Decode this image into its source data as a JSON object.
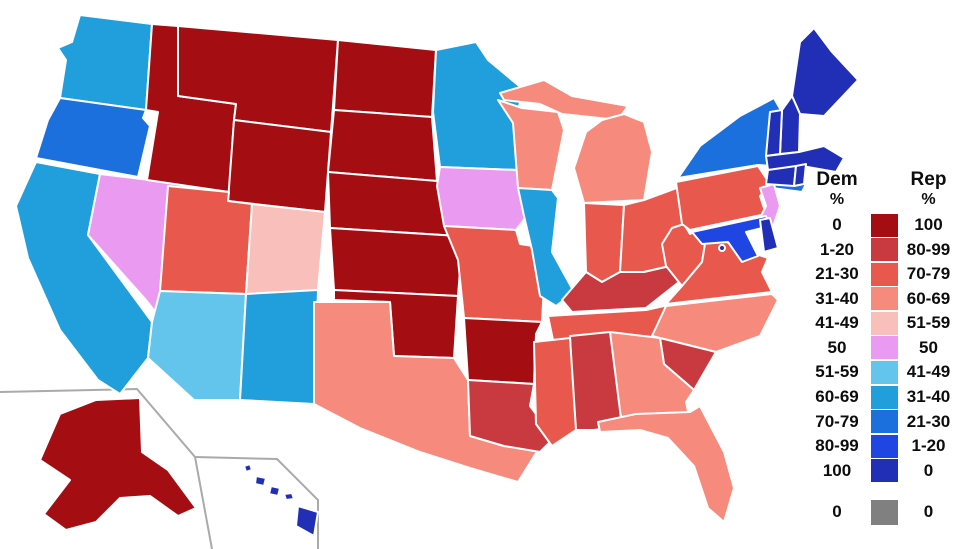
{
  "canvas": {
    "background": "#ffffff",
    "state_border_color": "#ffffff",
    "inset_border_color": "#aaaaaa"
  },
  "legend": {
    "dem_header": {
      "title": "Dem",
      "unit": "%"
    },
    "rep_header": {
      "title": "Rep",
      "unit": "%"
    },
    "rows": [
      {
        "dem": "0",
        "rep": "100",
        "color": "#a40d12"
      },
      {
        "dem": "1-20",
        "rep": "80-99",
        "color": "#c93a40"
      },
      {
        "dem": "21-30",
        "rep": "70-79",
        "color": "#e8584c"
      },
      {
        "dem": "31-40",
        "rep": "60-69",
        "color": "#f58a7d"
      },
      {
        "dem": "41-49",
        "rep": "51-59",
        "color": "#f9bfba"
      },
      {
        "dem": "50",
        "rep": "50",
        "color": "#eb9af1"
      },
      {
        "dem": "51-59",
        "rep": "41-49",
        "color": "#64c5ec"
      },
      {
        "dem": "60-69",
        "rep": "31-40",
        "color": "#219fdc"
      },
      {
        "dem": "70-79",
        "rep": "21-30",
        "color": "#1c70de"
      },
      {
        "dem": "80-99",
        "rep": "1-20",
        "color": "#1f45e2"
      },
      {
        "dem": "100",
        "rep": "0",
        "color": "#202fb5"
      }
    ],
    "none_row": {
      "dem": "0",
      "rep": "0",
      "color": "#808080"
    }
  },
  "chart_data": {
    "type": "choropleth-map",
    "title": "",
    "legend_position": "right",
    "categories_dem": [
      "0",
      "1-20",
      "21-30",
      "31-40",
      "41-49",
      "50",
      "51-59",
      "60-69",
      "70-79",
      "80-99",
      "100"
    ],
    "categories_rep": [
      "100",
      "80-99",
      "70-79",
      "60-69",
      "51-59",
      "50",
      "41-49",
      "31-40",
      "21-30",
      "1-20",
      "0"
    ]
  },
  "map": {
    "states": [
      {
        "id": "WA",
        "name": "Washington",
        "dem": "60-69"
      },
      {
        "id": "OR",
        "name": "Oregon",
        "dem": "70-79"
      },
      {
        "id": "CA",
        "name": "California",
        "dem": "60-69"
      },
      {
        "id": "NV",
        "name": "Nevada",
        "dem": "50"
      },
      {
        "id": "ID",
        "name": "Idaho",
        "dem": "0"
      },
      {
        "id": "MT",
        "name": "Montana",
        "dem": "0"
      },
      {
        "id": "WY",
        "name": "Wyoming",
        "dem": "0"
      },
      {
        "id": "UT",
        "name": "Utah",
        "dem": "21-30"
      },
      {
        "id": "CO",
        "name": "Colorado",
        "dem": "41-49"
      },
      {
        "id": "AZ",
        "name": "Arizona",
        "dem": "51-59"
      },
      {
        "id": "NM",
        "name": "New Mexico",
        "dem": "60-69"
      },
      {
        "id": "ND",
        "name": "North Dakota",
        "dem": "0"
      },
      {
        "id": "SD",
        "name": "South Dakota",
        "dem": "0"
      },
      {
        "id": "NE",
        "name": "Nebraska",
        "dem": "0"
      },
      {
        "id": "KS",
        "name": "Kansas",
        "dem": "0"
      },
      {
        "id": "OK",
        "name": "Oklahoma",
        "dem": "0"
      },
      {
        "id": "TX",
        "name": "Texas",
        "dem": "31-40"
      },
      {
        "id": "MN",
        "name": "Minnesota",
        "dem": "60-69"
      },
      {
        "id": "IA",
        "name": "Iowa",
        "dem": "50"
      },
      {
        "id": "MO",
        "name": "Missouri",
        "dem": "21-30"
      },
      {
        "id": "AR",
        "name": "Arkansas",
        "dem": "0"
      },
      {
        "id": "LA",
        "name": "Louisiana",
        "dem": "1-20"
      },
      {
        "id": "WI",
        "name": "Wisconsin",
        "dem": "31-40"
      },
      {
        "id": "IL",
        "name": "Illinois",
        "dem": "60-69"
      },
      {
        "id": "MI",
        "name": "Michigan",
        "dem": "31-40"
      },
      {
        "id": "IN",
        "name": "Indiana",
        "dem": "21-30"
      },
      {
        "id": "OH",
        "name": "Ohio",
        "dem": "21-30"
      },
      {
        "id": "KY",
        "name": "Kentucky",
        "dem": "1-20"
      },
      {
        "id": "TN",
        "name": "Tennessee",
        "dem": "21-30"
      },
      {
        "id": "WV",
        "name": "West Virginia",
        "dem": "21-30"
      },
      {
        "id": "VA",
        "name": "Virginia",
        "dem": "21-30"
      },
      {
        "id": "NC",
        "name": "North Carolina",
        "dem": "31-40"
      },
      {
        "id": "SC",
        "name": "South Carolina",
        "dem": "1-20"
      },
      {
        "id": "GA",
        "name": "Georgia",
        "dem": "31-40"
      },
      {
        "id": "AL",
        "name": "Alabama",
        "dem": "1-20"
      },
      {
        "id": "MS",
        "name": "Mississippi",
        "dem": "21-30"
      },
      {
        "id": "FL",
        "name": "Florida",
        "dem": "31-40"
      },
      {
        "id": "PA",
        "name": "Pennsylvania",
        "dem": "21-30"
      },
      {
        "id": "NY",
        "name": "New York",
        "dem": "70-79"
      },
      {
        "id": "NJ",
        "name": "New Jersey",
        "dem": "50"
      },
      {
        "id": "MD",
        "name": "Maryland",
        "dem": "80-99"
      },
      {
        "id": "DE",
        "name": "Delaware",
        "dem": "100"
      },
      {
        "id": "ME",
        "name": "Maine",
        "dem": "100"
      },
      {
        "id": "NH",
        "name": "New Hampshire",
        "dem": "100"
      },
      {
        "id": "VT",
        "name": "Vermont",
        "dem": "100"
      },
      {
        "id": "MA",
        "name": "Massachusetts",
        "dem": "100"
      },
      {
        "id": "CT",
        "name": "Connecticut",
        "dem": "100"
      },
      {
        "id": "RI",
        "name": "Rhode Island",
        "dem": "100"
      },
      {
        "id": "AK",
        "name": "Alaska",
        "dem": "0"
      },
      {
        "id": "HI",
        "name": "Hawaii",
        "dem": "100"
      },
      {
        "id": "DC",
        "name": "District of Columbia",
        "dem": "100"
      }
    ]
  }
}
